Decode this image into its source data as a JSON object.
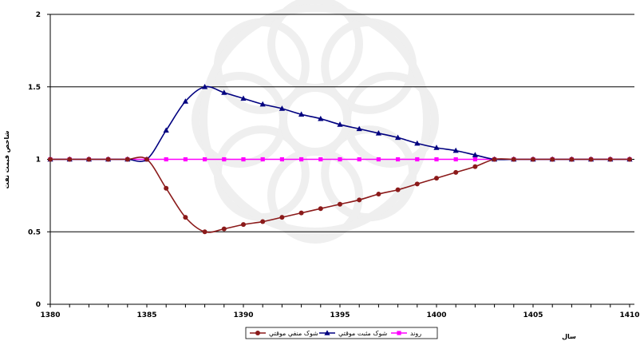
{
  "chart_data": {
    "type": "line",
    "title": "",
    "xlabel": "سال",
    "ylabel": "شاخص قیمت نفت",
    "xlim": [
      1380,
      1410
    ],
    "ylim": [
      0,
      2
    ],
    "xticks": [
      1380,
      1385,
      1390,
      1395,
      1400,
      1405,
      1410
    ],
    "yticks": [
      0,
      0.5,
      1,
      1.5,
      2
    ],
    "ytick_labels": [
      "0",
      "0.5",
      "1",
      "1.5",
      "2"
    ],
    "grid": "horizontal",
    "legend_position": "bottom",
    "x": [
      1380,
      1381,
      1382,
      1383,
      1384,
      1385,
      1386,
      1387,
      1388,
      1389,
      1390,
      1391,
      1392,
      1393,
      1394,
      1395,
      1396,
      1397,
      1398,
      1399,
      1400,
      1401,
      1402,
      1403,
      1404,
      1405,
      1406,
      1407,
      1408,
      1409,
      1410
    ],
    "series": [
      {
        "name": "روند",
        "color": "#FF00FF",
        "marker": "square",
        "values": [
          1,
          1,
          1,
          1,
          1,
          1,
          1,
          1,
          1,
          1,
          1,
          1,
          1,
          1,
          1,
          1,
          1,
          1,
          1,
          1,
          1,
          1,
          1,
          1,
          1,
          1,
          1,
          1,
          1,
          1,
          1
        ]
      },
      {
        "name": "شوک مثبت موقتي",
        "color": "#000080",
        "marker": "triangle",
        "values": [
          1,
          1,
          1,
          1,
          1,
          1,
          1.2,
          1.4,
          1.5,
          1.46,
          1.42,
          1.38,
          1.35,
          1.31,
          1.28,
          1.24,
          1.21,
          1.18,
          1.15,
          1.11,
          1.08,
          1.06,
          1.03,
          1,
          1,
          1,
          1,
          1,
          1,
          1,
          1
        ]
      },
      {
        "name": "شوک منفي موقتي",
        "color": "#8B1A1A",
        "marker": "circle",
        "values": [
          1,
          1,
          1,
          1,
          1,
          1,
          0.8,
          0.6,
          0.5,
          0.52,
          0.55,
          0.57,
          0.6,
          0.63,
          0.66,
          0.69,
          0.72,
          0.76,
          0.79,
          0.83,
          0.87,
          0.91,
          0.95,
          1,
          1,
          1,
          1,
          1,
          1,
          1,
          1
        ]
      }
    ]
  }
}
